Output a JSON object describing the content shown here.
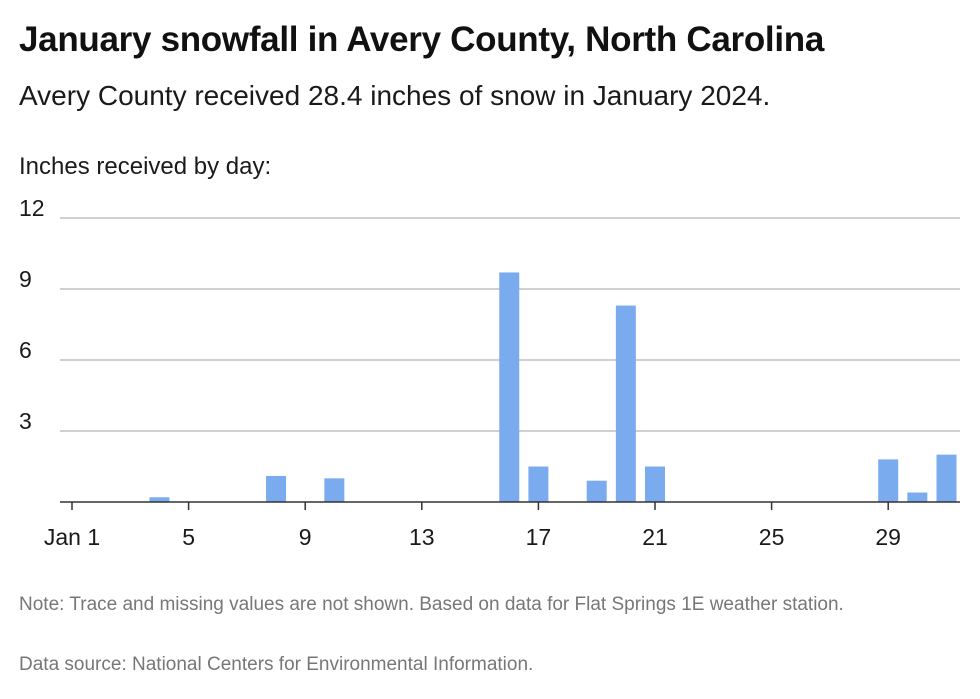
{
  "header": {
    "title": "January snowfall in Avery County, North Carolina",
    "subtitle": "Avery County received 28.4 inches of snow in January 2024.",
    "axis_caption": "Inches received by day:"
  },
  "footer": {
    "note": "Note: Trace and missing values are not shown. Based on data for Flat Springs 1E weather station.",
    "source": "Data source: National Centers for Environmental Information."
  },
  "chart_data": {
    "type": "bar",
    "title": "January snowfall in Avery County, North Carolina",
    "subtitle": "Avery County received 28.4 inches of snow in January 2024.",
    "xlabel": "",
    "ylabel": "Inches received by day:",
    "ylim": [
      0,
      12
    ],
    "yticks": [
      3,
      6,
      9,
      12
    ],
    "xlim": [
      1,
      31
    ],
    "xticks": [
      {
        "value": 1,
        "label": "Jan 1"
      },
      {
        "value": 5,
        "label": "5"
      },
      {
        "value": 9,
        "label": "9"
      },
      {
        "value": 13,
        "label": "13"
      },
      {
        "value": 17,
        "label": "17"
      },
      {
        "value": 21,
        "label": "21"
      },
      {
        "value": 25,
        "label": "25"
      },
      {
        "value": 29,
        "label": "29"
      }
    ],
    "grid": true,
    "bar_color": "#7aabee",
    "points": [
      {
        "day": 4,
        "value": 0.2
      },
      {
        "day": 8,
        "value": 1.1
      },
      {
        "day": 10,
        "value": 1.0
      },
      {
        "day": 16,
        "value": 9.7
      },
      {
        "day": 17,
        "value": 1.5
      },
      {
        "day": 19,
        "value": 0.9
      },
      {
        "day": 20,
        "value": 8.3
      },
      {
        "day": 21,
        "value": 1.5
      },
      {
        "day": 29,
        "value": 1.8
      },
      {
        "day": 30,
        "value": 0.4
      },
      {
        "day": 31,
        "value": 2.0
      }
    ]
  }
}
